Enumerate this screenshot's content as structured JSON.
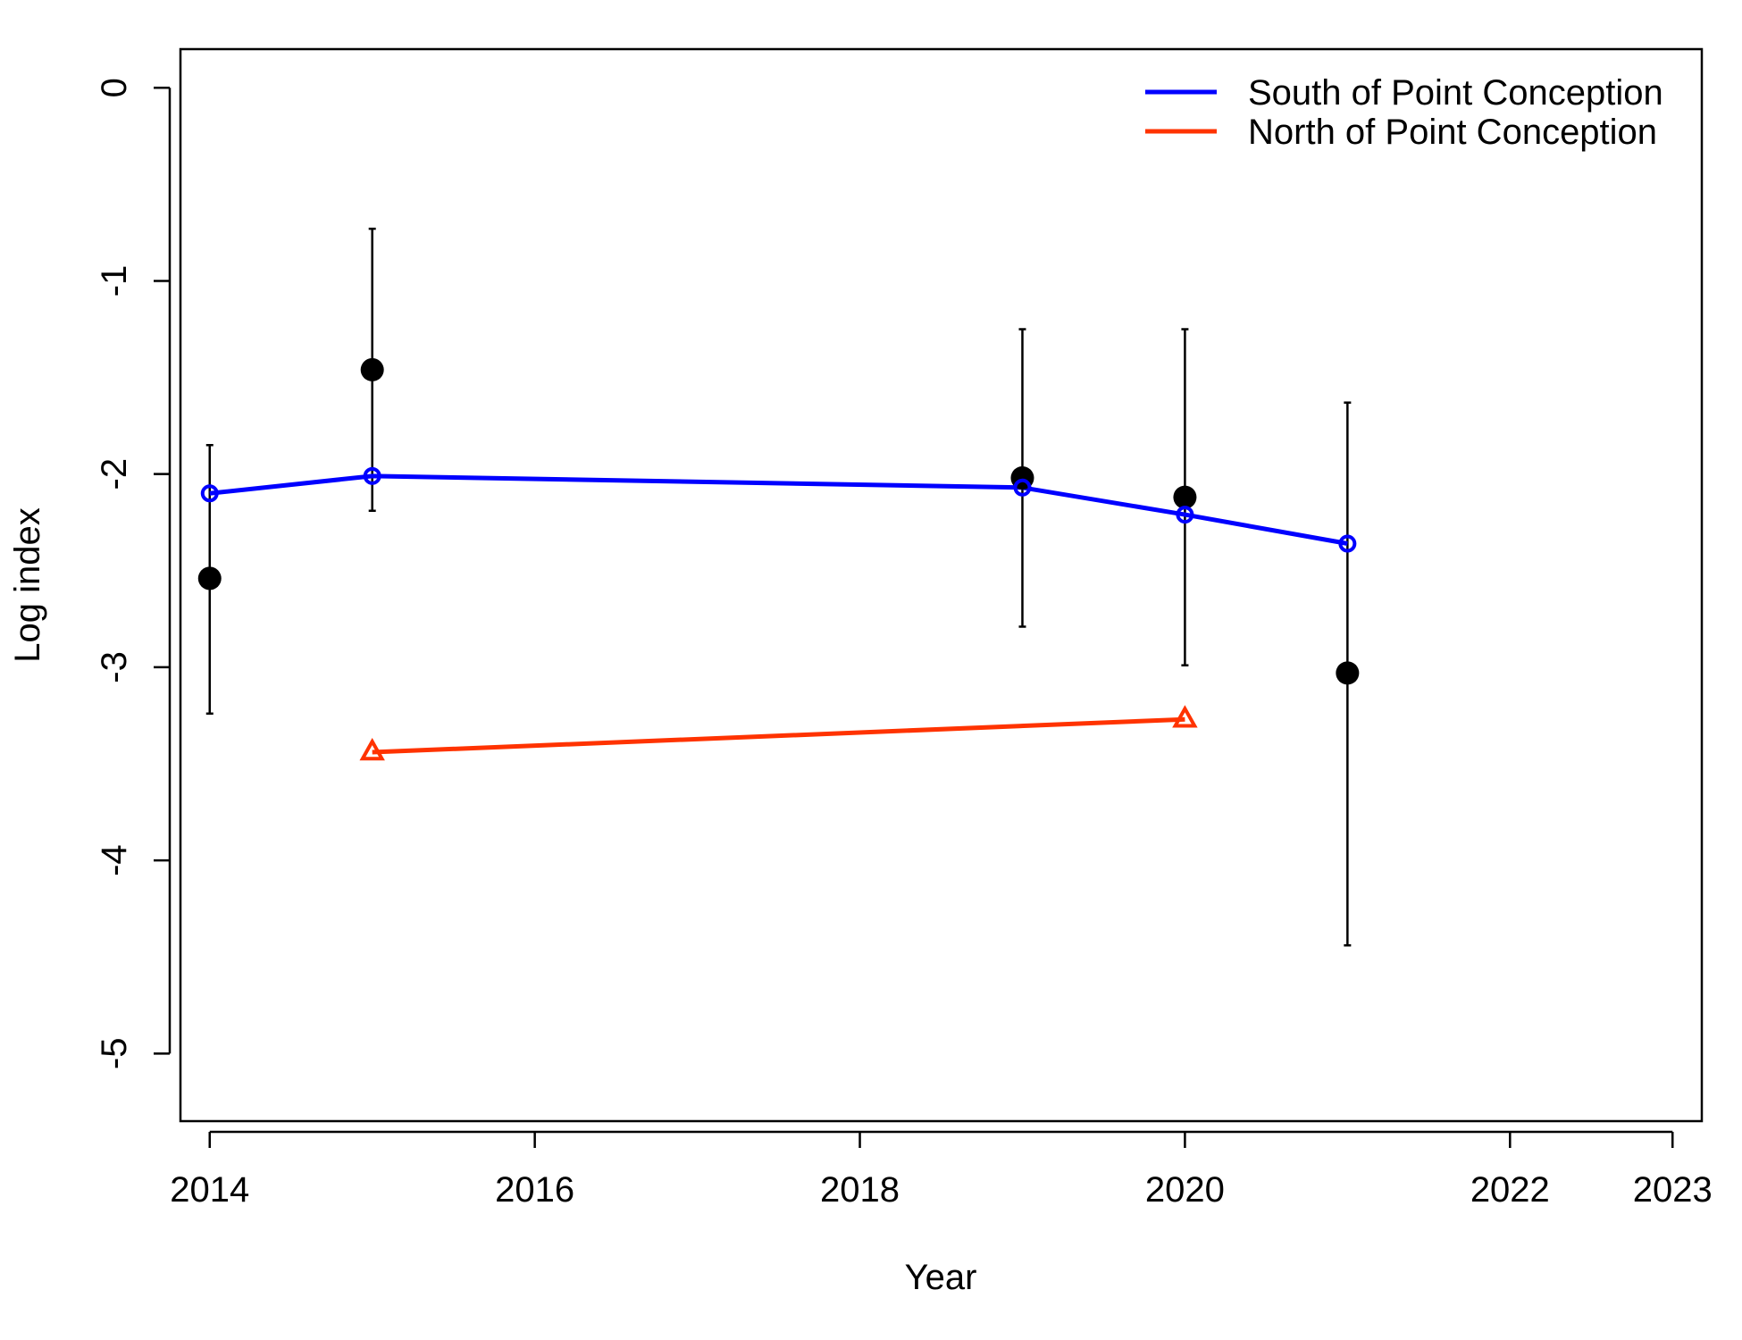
{
  "chart_data": {
    "type": "line",
    "xlabel": "Year",
    "ylabel": "Log index",
    "xlim": [
      2013.82,
      2023.18
    ],
    "ylim": [
      -5.35,
      0.2
    ],
    "x_ticks": [
      2014,
      2016,
      2018,
      2020,
      2022,
      2023
    ],
    "y_ticks": [
      0,
      -1,
      -2,
      -3,
      -4,
      -5
    ],
    "grid": false,
    "legend_position": "top-right",
    "observed": {
      "points": [
        {
          "x": 2014,
          "y": -2.54,
          "lo": -3.24,
          "hi": -1.85
        },
        {
          "x": 2015,
          "y": -1.46,
          "lo": -2.19,
          "hi": -0.73
        },
        {
          "x": 2019,
          "y": -2.02,
          "lo": -2.79,
          "hi": -1.25
        },
        {
          "x": 2020,
          "y": -2.12,
          "lo": -2.99,
          "hi": -1.25
        },
        {
          "x": 2021,
          "y": -3.03,
          "lo": -4.44,
          "hi": -1.63
        }
      ],
      "color": "#000000"
    },
    "series": [
      {
        "name": "South of Point Conception",
        "color": "#0000ff",
        "marker": "circle",
        "x": [
          2014,
          2015,
          2019,
          2020,
          2021
        ],
        "values": [
          -2.1,
          -2.01,
          -2.07,
          -2.21,
          -2.36
        ]
      },
      {
        "name": "North of Point Conception",
        "color": "#ff3300",
        "marker": "triangle",
        "x": [
          2015,
          2020
        ],
        "values": [
          -3.44,
          -3.27
        ]
      }
    ]
  }
}
